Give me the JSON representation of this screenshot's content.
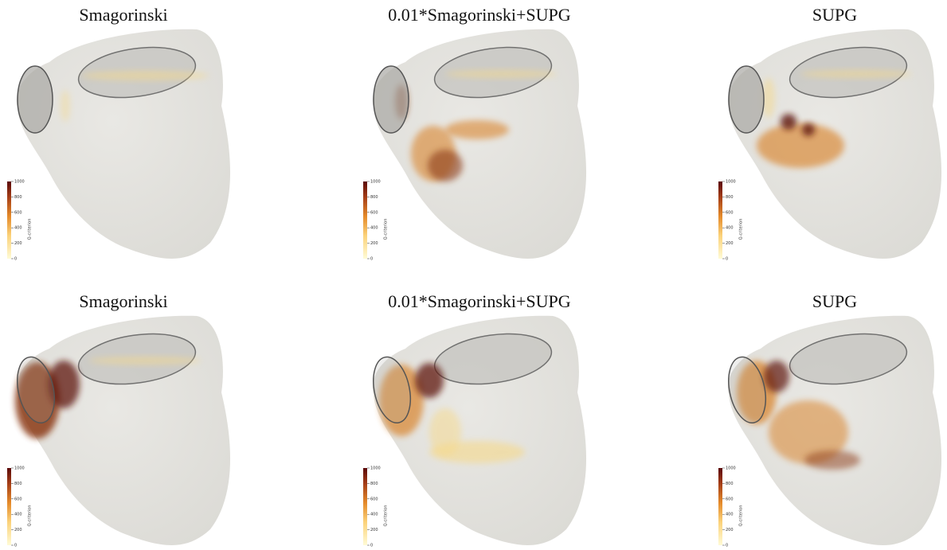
{
  "panels": [
    {
      "title": "Smagorinski"
    },
    {
      "title": "0.01*Smagorinski+SUPG"
    },
    {
      "title": "SUPG"
    },
    {
      "title": "Smagorinski"
    },
    {
      "title": "0.01*Smagorinski+SUPG"
    },
    {
      "title": "SUPG"
    }
  ],
  "colorbar": {
    "label": "Q-criterion",
    "ticks": [
      0,
      200,
      400,
      600,
      800,
      1000
    ]
  }
}
